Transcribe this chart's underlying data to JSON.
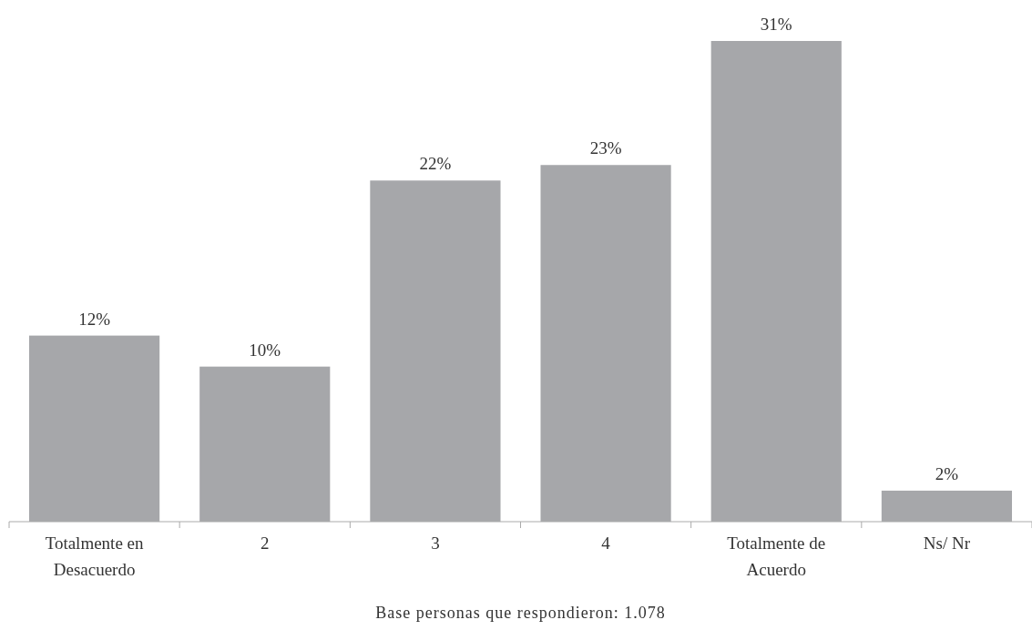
{
  "chart_data": {
    "type": "bar",
    "categories": [
      "Totalmente en Desacuerdo",
      "2",
      "3",
      "4",
      "Totalmente de Acuerdo",
      "Ns/ Nr"
    ],
    "values": [
      12,
      10,
      22,
      23,
      31,
      2
    ],
    "value_labels": [
      "12%",
      "10%",
      "22%",
      "23%",
      "31%",
      "2%"
    ],
    "color": "#a6a7aa",
    "annotations": [
      "Base personas que respondieron: 1.078"
    ]
  }
}
